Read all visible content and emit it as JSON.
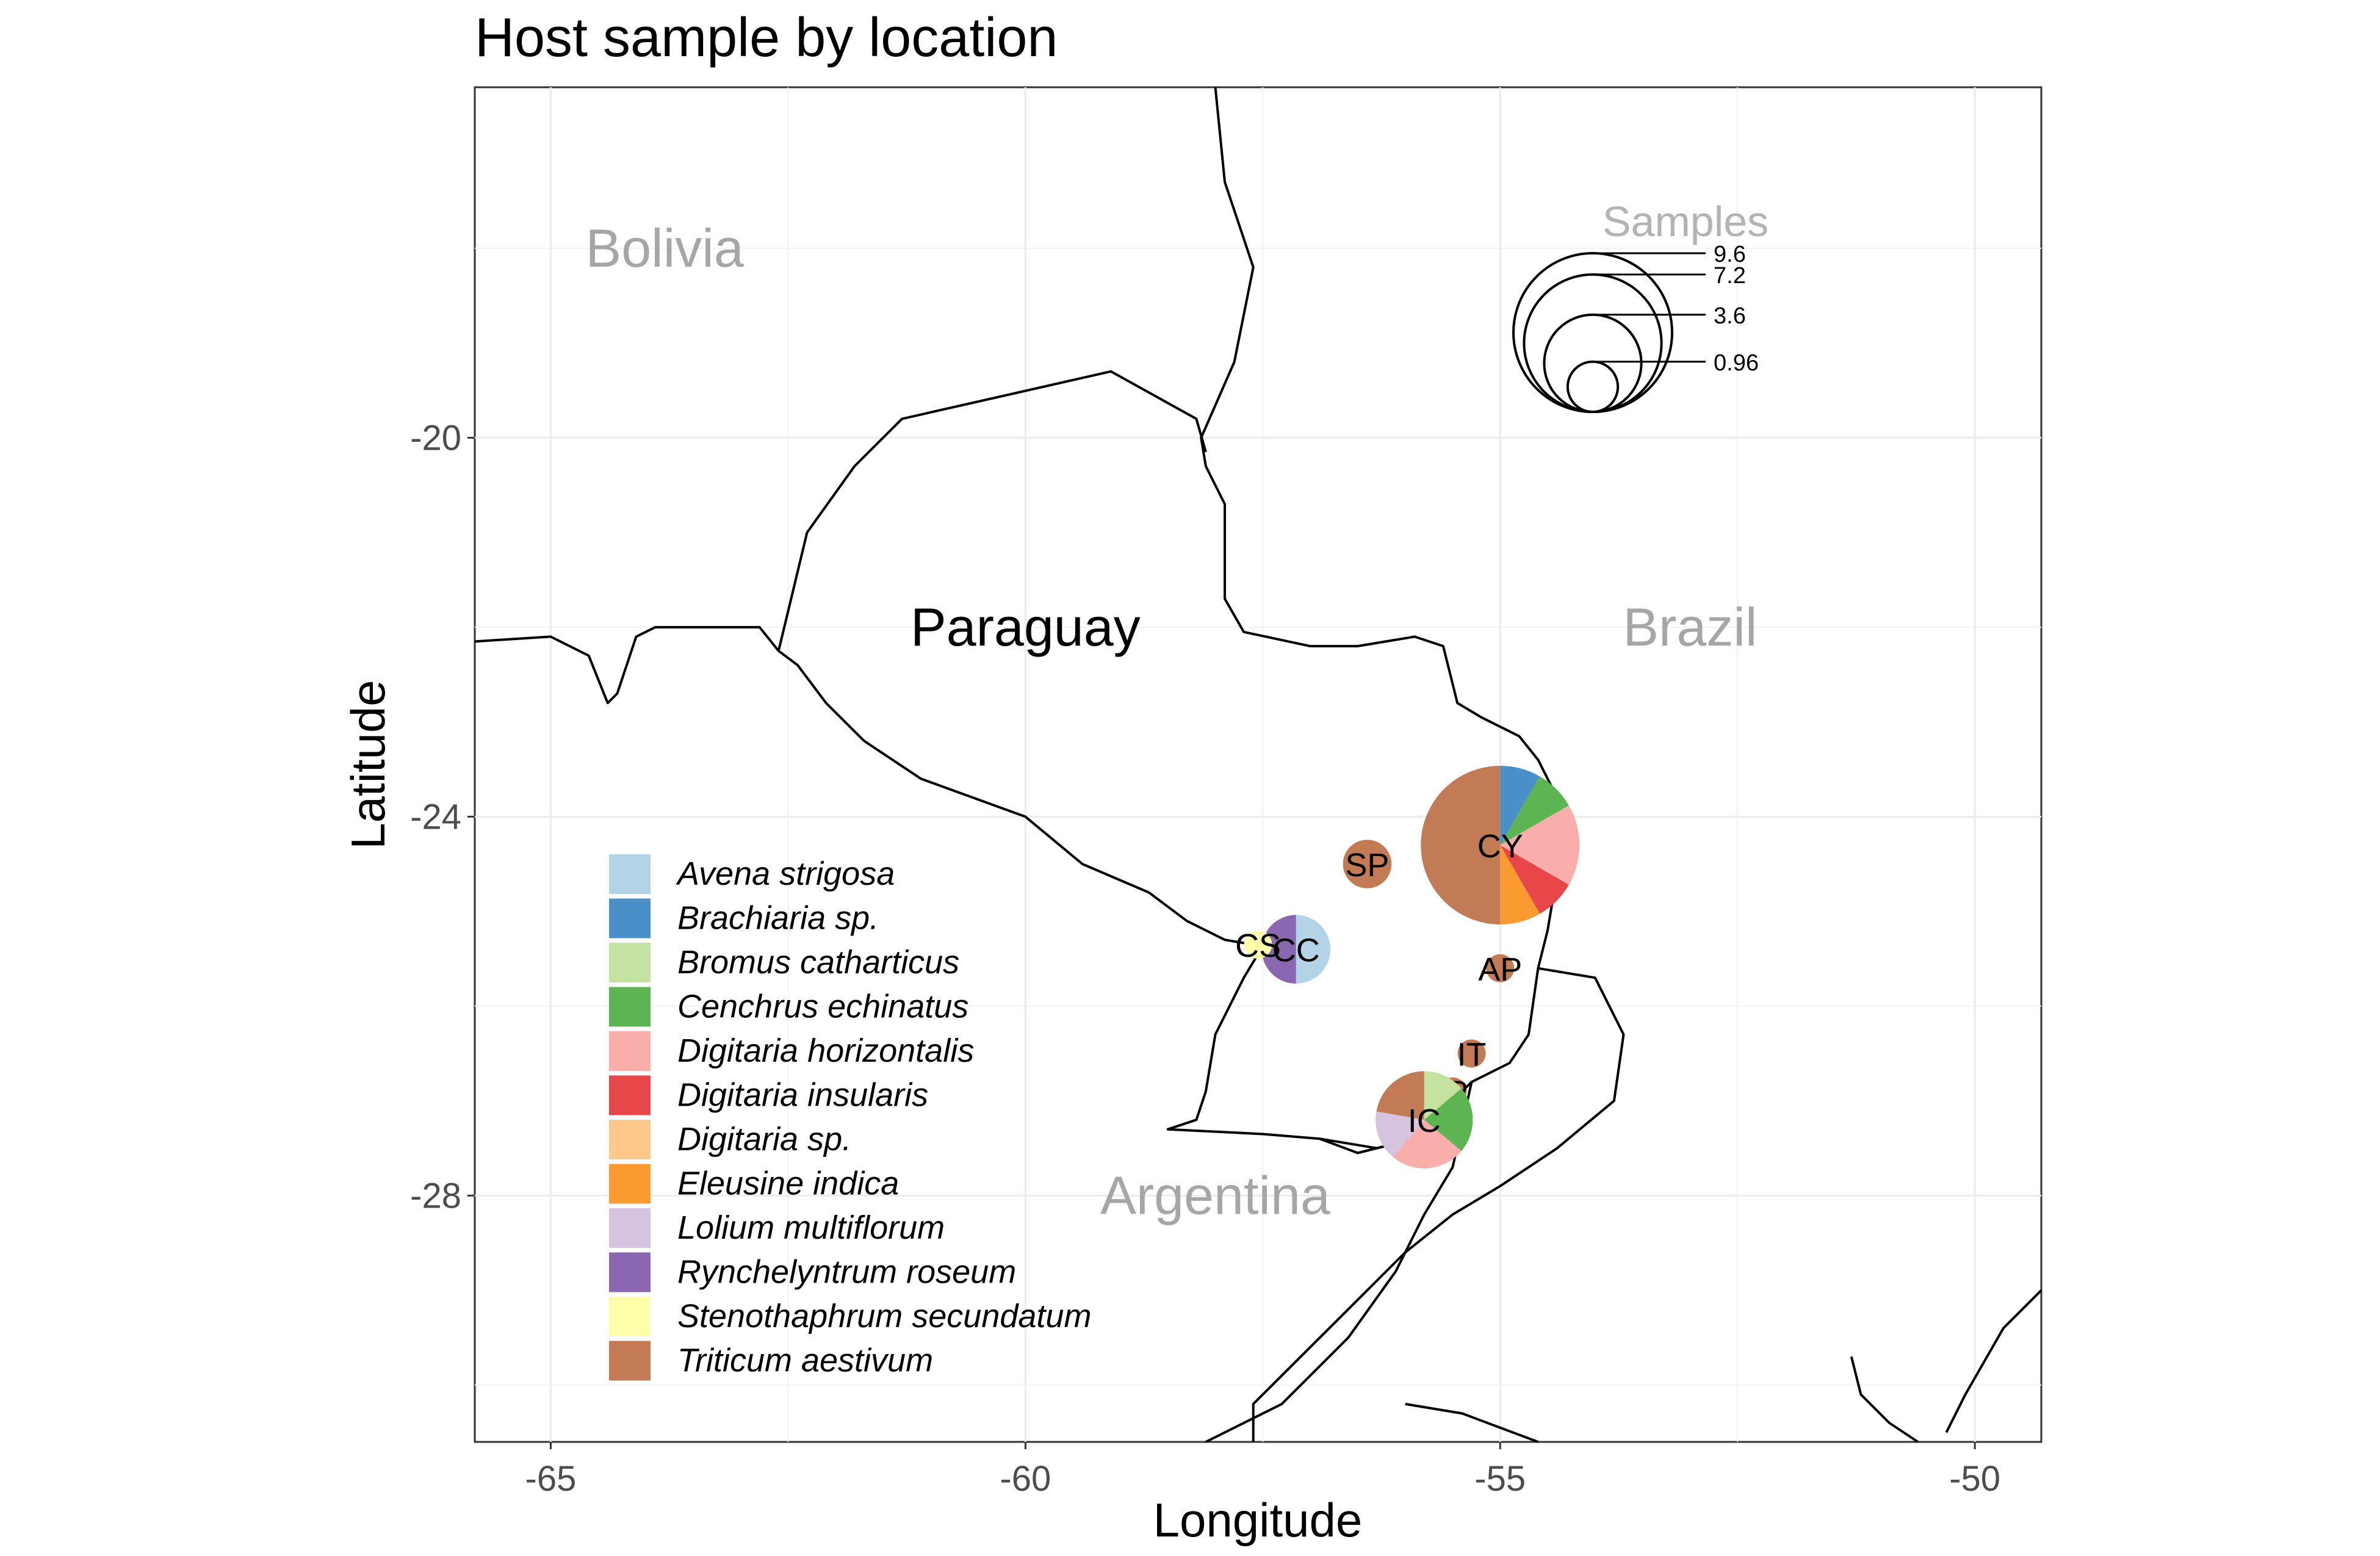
{
  "chart_data": {
    "type": "map-pie",
    "title": "Host sample by location",
    "xlabel": "Longitude",
    "ylabel": "Latitude",
    "xlim": [
      -65.8,
      -49.3
    ],
    "ylim": [
      -30.6,
      -16.3
    ],
    "x_ticks": [
      -65,
      -60,
      -55,
      -50
    ],
    "y_ticks": [
      -20,
      -24,
      -28
    ],
    "grid": true,
    "legend_position": "bottom-left",
    "countries": [
      {
        "name": "Bolivia",
        "lon": -63.8,
        "lat": -18.0,
        "focus": false
      },
      {
        "name": "Paraguay",
        "lon": -60.0,
        "lat": -22.0,
        "focus": true
      },
      {
        "name": "Brazil",
        "lon": -53.0,
        "lat": -22.0,
        "focus": false
      },
      {
        "name": "Argentina",
        "lon": -58.0,
        "lat": -28.0,
        "focus": false
      }
    ],
    "hosts": [
      {
        "name": "Avena strigosa",
        "color": "#b3d4e6"
      },
      {
        "name": "Brachiaria sp.",
        "color": "#4a90c8"
      },
      {
        "name": "Bromus catharticus",
        "color": "#c4e2a0"
      },
      {
        "name": "Cenchrus echinatus",
        "color": "#5cb452"
      },
      {
        "name": "Digitaria horizontalis",
        "color": "#f9aeab"
      },
      {
        "name": "Digitaria insularis",
        "color": "#e8474a"
      },
      {
        "name": "Digitaria sp.",
        "color": "#fdc98a"
      },
      {
        "name": "Eleusine indica",
        "color": "#fc9a32"
      },
      {
        "name": "Lolium multiflorum",
        "color": "#d5c3df"
      },
      {
        "name": "Rynchelyntrum roseum",
        "color": "#8a67b0"
      },
      {
        "name": "Stenothaphrum secundatum",
        "color": "#fefeaa"
      },
      {
        "name": "Triticum aestivum",
        "color": "#c27b55"
      }
    ],
    "sites": [
      {
        "code": "CY",
        "lon": -55.0,
        "lat": -24.3,
        "total": 9.6,
        "counts": {
          "Brachiaria sp.": 0.8,
          "Cenchrus echinatus": 0.8,
          "Digitaria horizontalis": 1.6,
          "Digitaria insularis": 0.8,
          "Eleusine indica": 0.8,
          "Triticum aestivum": 4.8
        }
      },
      {
        "code": "SP",
        "lon": -56.4,
        "lat": -24.5,
        "total": 0.9,
        "counts": {
          "Triticum aestivum": 0.9
        }
      },
      {
        "code": "CC",
        "lon": -57.15,
        "lat": -25.4,
        "total": 1.8,
        "counts": {
          "Avena strigosa": 0.9,
          "Rynchelyntrum roseum": 0.9
        }
      },
      {
        "code": "CS",
        "lon": -57.55,
        "lat": -25.35,
        "total": 0.3,
        "counts": {
          "Stenothaphrum secundatum": 0.3
        }
      },
      {
        "code": "AP",
        "lon": -55.0,
        "lat": -25.6,
        "total": 0.3,
        "counts": {
          "Triticum aestivum": 0.3
        }
      },
      {
        "code": "IT",
        "lon": -55.3,
        "lat": -26.5,
        "total": 0.3,
        "counts": {
          "Triticum aestivum": 0.3
        }
      },
      {
        "code": "IP",
        "lon": -55.5,
        "lat": -26.9,
        "total": 0.3,
        "counts": {
          "Triticum aestivum": 0.3
        }
      },
      {
        "code": "IC",
        "lon": -55.8,
        "lat": -27.2,
        "total": 3.6,
        "counts": {
          "Bromus catharticus": 0.5,
          "Cenchrus echinatus": 0.8,
          "Digitaria horizontalis": 0.9,
          "Lolium multiflorum": 0.6,
          "Triticum aestivum": 0.8
        }
      }
    ],
    "size_legend": {
      "title": "Samples",
      "values": [
        9.6,
        7.2,
        3.6,
        0.96
      ],
      "labels": [
        "9.6",
        "7.2",
        "3.6",
        "0.96"
      ]
    },
    "borders": [
      [
        [
          -65.8,
          -22.15
        ],
        [
          -65.0,
          -22.1
        ],
        [
          -64.6,
          -22.3
        ],
        [
          -64.4,
          -22.8
        ],
        [
          -64.3,
          -22.7
        ],
        [
          -64.1,
          -22.1
        ],
        [
          -63.9,
          -22.0
        ],
        [
          -62.8,
          -22.0
        ],
        [
          -62.6,
          -22.25
        ],
        [
          -62.4,
          -22.4
        ],
        [
          -62.1,
          -22.8
        ],
        [
          -61.7,
          -23.2
        ],
        [
          -61.1,
          -23.6
        ],
        [
          -60.0,
          -24.0
        ],
        [
          -59.4,
          -24.5
        ],
        [
          -58.7,
          -24.8
        ],
        [
          -58.3,
          -25.1
        ],
        [
          -57.9,
          -25.3
        ],
        [
          -57.6,
          -25.35
        ],
        [
          -57.55,
          -25.45
        ],
        [
          -57.7,
          -25.7
        ],
        [
          -57.85,
          -26.0
        ],
        [
          -58.0,
          -26.3
        ],
        [
          -58.1,
          -26.9
        ],
        [
          -58.2,
          -27.2
        ],
        [
          -58.5,
          -27.3
        ],
        [
          -57.5,
          -27.35
        ],
        [
          -56.9,
          -27.4
        ],
        [
          -56.3,
          -27.5
        ],
        [
          -55.9,
          -27.4
        ],
        [
          -55.6,
          -27.1
        ],
        [
          -55.3,
          -26.8
        ],
        [
          -54.9,
          -26.6
        ],
        [
          -54.7,
          -26.3
        ],
        [
          -54.6,
          -25.6
        ],
        [
          -54.5,
          -25.2
        ],
        [
          -54.4,
          -24.6
        ],
        [
          -54.3,
          -24.2
        ],
        [
          -54.4,
          -23.8
        ],
        [
          -54.6,
          -23.4
        ],
        [
          -54.8,
          -23.15
        ],
        [
          -55.2,
          -22.95
        ],
        [
          -55.45,
          -22.8
        ],
        [
          -55.6,
          -22.2
        ],
        [
          -55.9,
          -22.1
        ],
        [
          -56.5,
          -22.2
        ],
        [
          -57.0,
          -22.2
        ],
        [
          -57.7,
          -22.05
        ],
        [
          -57.9,
          -21.7
        ],
        [
          -57.9,
          -20.7
        ],
        [
          -58.1,
          -20.3
        ],
        [
          -58.15,
          -20.0
        ],
        [
          -57.8,
          -19.2
        ],
        [
          -57.6,
          -18.2
        ],
        [
          -57.7,
          -17.9
        ],
        [
          -57.9,
          -17.3
        ],
        [
          -58.0,
          -16.3
        ]
      ],
      [
        [
          -62.6,
          -22.25
        ],
        [
          -62.3,
          -21.0
        ],
        [
          -61.8,
          -20.3
        ],
        [
          -61.3,
          -19.8
        ],
        [
          -59.1,
          -19.3
        ],
        [
          -58.2,
          -19.8
        ],
        [
          -58.1,
          -20.15
        ]
      ],
      [
        [
          -56.9,
          -27.4
        ],
        [
          -56.5,
          -27.55
        ],
        [
          -55.9,
          -27.4
        ]
      ],
      [
        [
          -55.3,
          -26.8
        ],
        [
          -55.5,
          -27.7
        ],
        [
          -55.8,
          -28.2
        ],
        [
          -56.1,
          -28.8
        ],
        [
          -56.6,
          -29.5
        ],
        [
          -57.3,
          -30.2
        ],
        [
          -58.1,
          -30.6
        ]
      ],
      [
        [
          -54.6,
          -25.6
        ],
        [
          -54.0,
          -25.7
        ],
        [
          -53.7,
          -26.3
        ],
        [
          -53.8,
          -27.0
        ],
        [
          -54.4,
          -27.5
        ],
        [
          -55.0,
          -27.9
        ],
        [
          -55.5,
          -28.2
        ],
        [
          -56.0,
          -28.6
        ],
        [
          -56.6,
          -29.2
        ],
        [
          -57.1,
          -29.7
        ],
        [
          -57.6,
          -30.2
        ],
        [
          -57.6,
          -30.6
        ]
      ],
      [
        [
          -54.6,
          -30.6
        ],
        [
          -55.4,
          -30.3
        ],
        [
          -56.0,
          -30.2
        ]
      ],
      [
        [
          -51.3,
          -29.7
        ],
        [
          -51.2,
          -30.1
        ],
        [
          -50.9,
          -30.4
        ],
        [
          -50.6,
          -30.6
        ]
      ],
      [
        [
          -49.3,
          -29.0
        ],
        [
          -49.7,
          -29.4
        ],
        [
          -50.1,
          -30.1
        ],
        [
          -50.3,
          -30.5
        ]
      ]
    ]
  }
}
